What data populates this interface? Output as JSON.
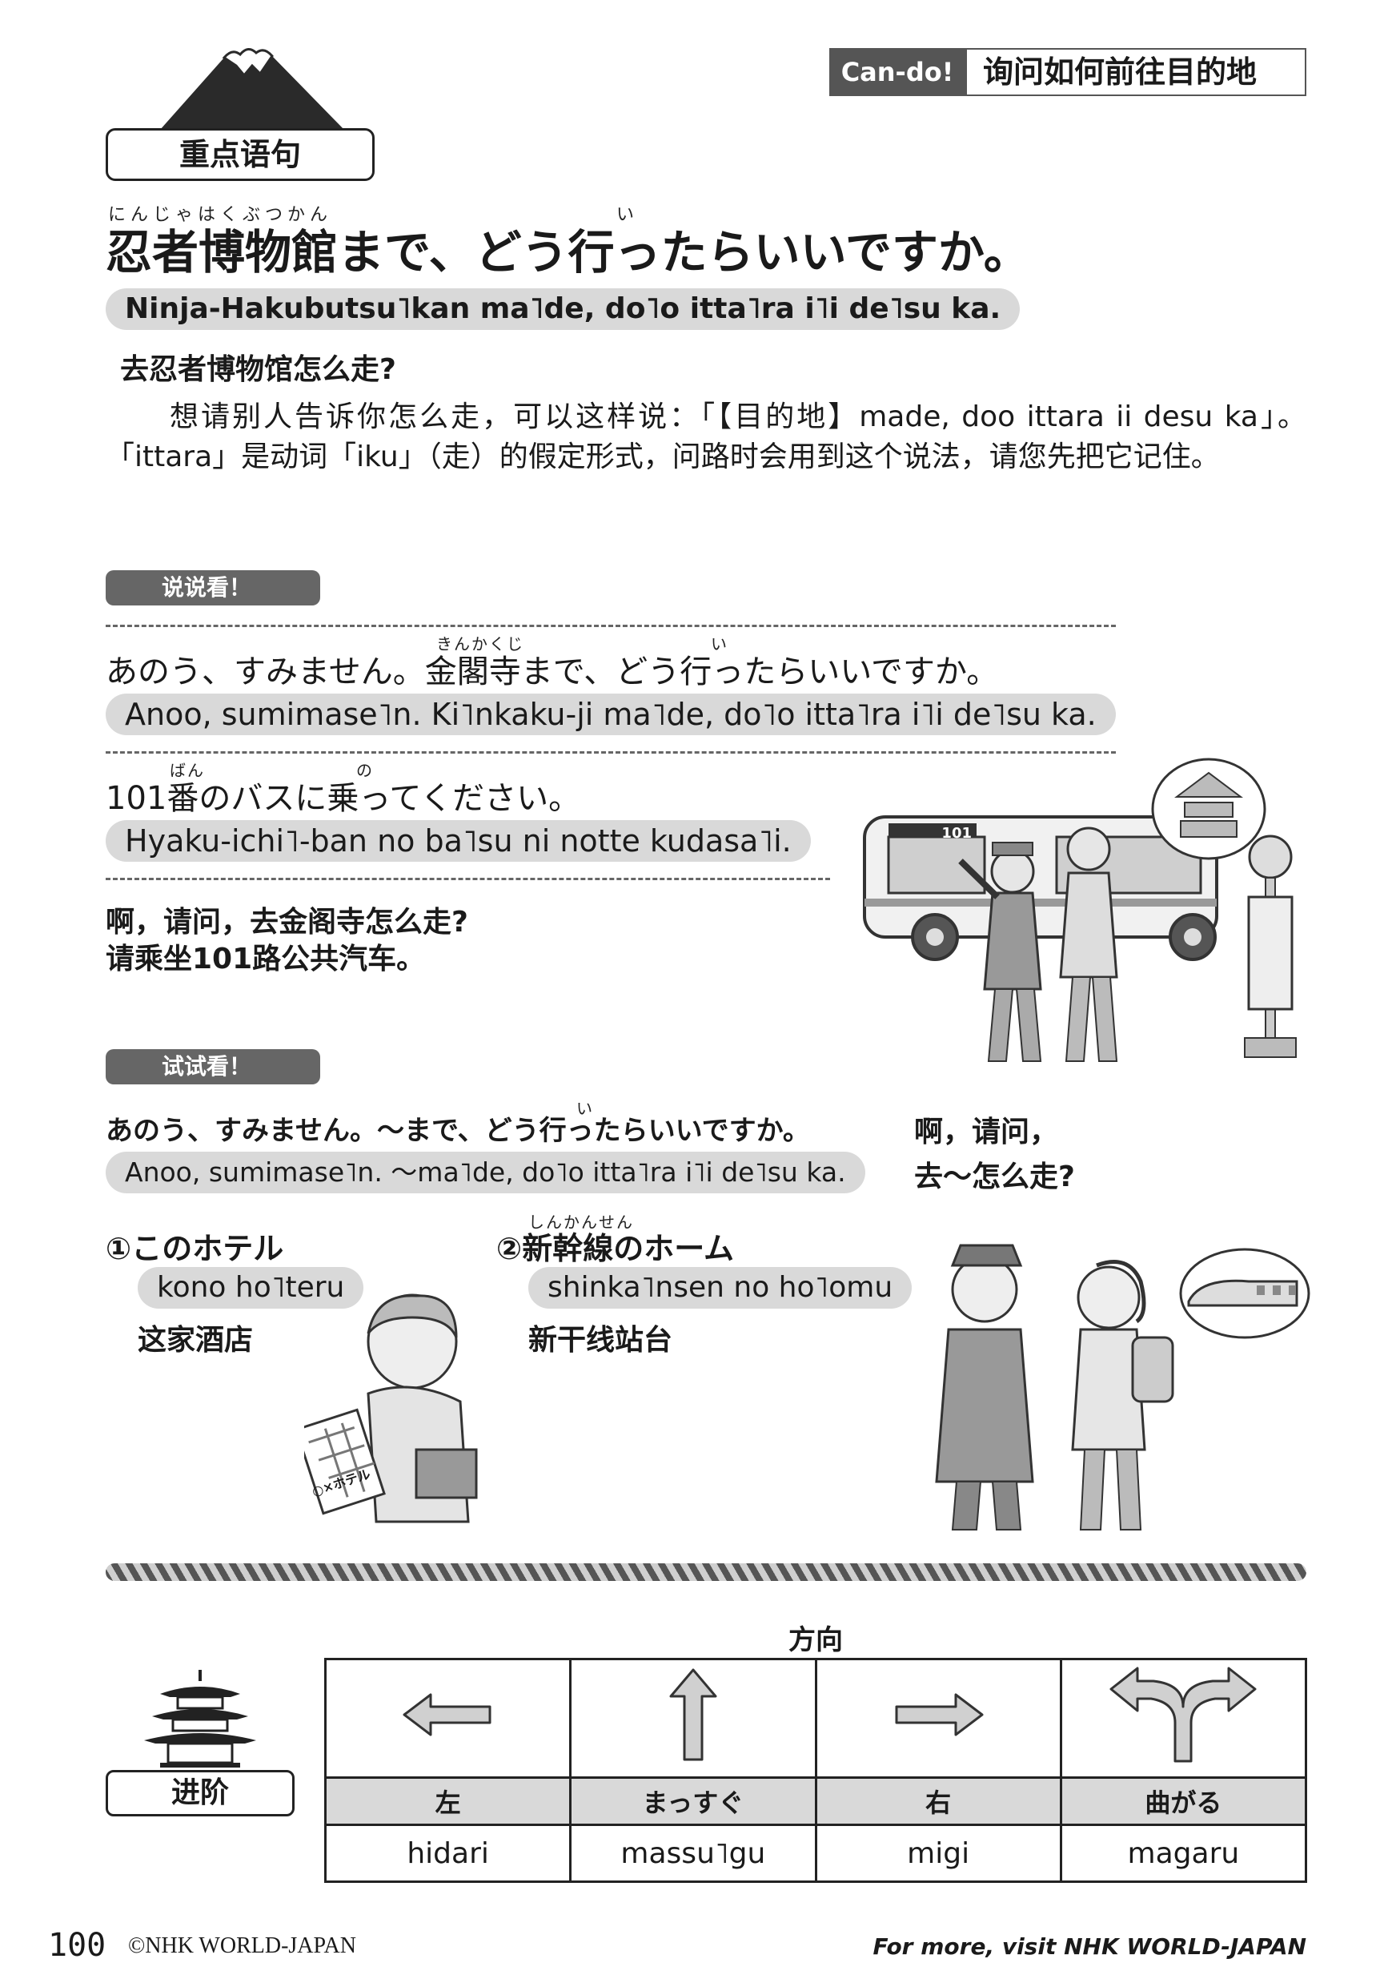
{
  "cando": {
    "badge": "Can-do!",
    "title": "询问如何前往目的地"
  },
  "section": {
    "label": "重点语句"
  },
  "key": {
    "ruby1": "にんじゃはくぶつかん",
    "ruby2": "い",
    "sentence": "忍者博物館まで、どう行ったらいいですか。",
    "romaji": "Ninja-Hakubutsu˥kan ma˥de, do˥o itta˥ra i˥i de˥su ka.",
    "meaning": "去忍者博物馆怎么走?",
    "explanation": "想请别人告诉你怎么走，可以这样说：「【目的地】made, doo ittara ii desu ka」。「ittara」是动词「iku」（走）的假定形式，问路时会用到这个说法，请您先把它记住。"
  },
  "say": {
    "label": "说说看！",
    "line1": {
      "ruby1": "きんかくじ",
      "ruby2": "い",
      "text": "あのう、すみません。金閣寺まで、どう行ったらいいですか。",
      "romaji": "Anoo, sumimase˥n. Ki˥nkaku-ji ma˥de, do˥o itta˥ra i˥i de˥su ka."
    },
    "line2": {
      "ruby1": "ばん",
      "ruby2": "の",
      "text": "101番のバスに乗ってください。",
      "romaji": "Hyaku-ichi˥-ban no ba˥su ni notte kudasa˥i."
    },
    "trans1": "啊，请问，去金阁寺怎么走?",
    "trans2": "请乘坐101路公共汽车。",
    "bus_number": "101"
  },
  "try": {
    "label": "试试看！",
    "ruby": "い",
    "text": "あのう、すみません。～まで、どう行ったらいいですか。",
    "romaji": "Anoo, sumimase˥n. ～ma˥de, do˥o itta˥ra i˥i de˥su ka.",
    "trans1": "啊，请问，",
    "trans2": "去～怎么走?",
    "option1": {
      "num": "①",
      "jp": "このホテル",
      "romaji": "kono ho˥teru",
      "zh": "这家酒店",
      "map_label": "○×ホテル"
    },
    "option2": {
      "num": "②",
      "ruby": "しんかんせん",
      "jp": "新幹線のホーム",
      "romaji": "shinka˥nsen no ho˥omu",
      "zh": "新干线站台"
    }
  },
  "advanced": {
    "label": "进阶",
    "table_title": "方向",
    "columns": [
      {
        "icon": "left-arrow-icon",
        "jp": "左",
        "romaji": "hidari"
      },
      {
        "icon": "up-arrow-icon",
        "jp": "まっすぐ",
        "romaji": "massu˥gu"
      },
      {
        "icon": "right-arrow-icon",
        "jp": "右",
        "romaji": "migi"
      },
      {
        "icon": "fork-arrow-icon",
        "jp": "曲がる",
        "romaji": "magaru"
      }
    ]
  },
  "footer": {
    "page": "100",
    "copyright": "©NHK WORLD-JAPAN",
    "visit": "For more, visit NHK WORLD-JAPAN"
  }
}
